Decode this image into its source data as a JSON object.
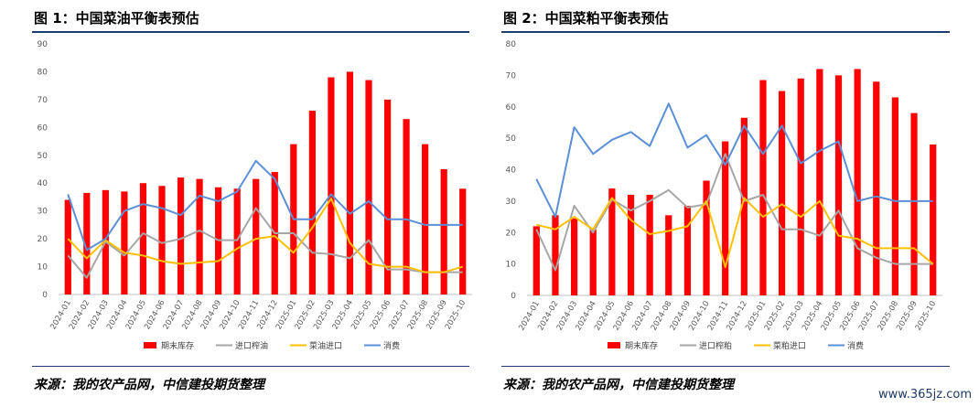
{
  "figures": [
    {
      "title": "图 1：中国菜油平衡表预估",
      "source": "来源：我的农产品网，中信建投期货整理"
    },
    {
      "title": "图 2：中国菜粕平衡表预估",
      "source": "来源：我的农产品网，中信建投期货整理"
    }
  ],
  "watermark": "www.365jz.com",
  "colors": {
    "stock": "#ff0000",
    "import_product": "#a6a6a6",
    "import_seed": "#ffc000",
    "consumption": "#5b8fd6",
    "rule": "#1f3b6e"
  },
  "chart_data": [
    {
      "type": "bar",
      "title": "图 1：中国菜油平衡表预估",
      "categories": [
        "2024-01",
        "2024-02",
        "2024-03",
        "2024-04",
        "2024-05",
        "2024-06",
        "2024-07",
        "2024-08",
        "2024-09",
        "2024-10",
        "2024-11",
        "2024-12",
        "2025-01",
        "2025-02",
        "2025-03",
        "2025-04",
        "2025-05",
        "2025-06",
        "2025-07",
        "2025-08",
        "2025-09",
        "2025-10"
      ],
      "ylim": [
        0,
        90
      ],
      "yticks": [
        0,
        10,
        20,
        30,
        40,
        50,
        60,
        70,
        80,
        90
      ],
      "legend_position": "bottom",
      "series": [
        {
          "name": "期末库存",
          "kind": "bar",
          "values": [
            34,
            36.5,
            37.5,
            37,
            40,
            39,
            42,
            41.5,
            38.5,
            38,
            41.5,
            44,
            54,
            66,
            78,
            80,
            77,
            70,
            63,
            54,
            45,
            38
          ]
        },
        {
          "name": "进口榨油",
          "kind": "line",
          "values": [
            14,
            6,
            19,
            14,
            22,
            18.5,
            20,
            23,
            19.5,
            19.5,
            31,
            22,
            22,
            15,
            14.5,
            13,
            19.5,
            9,
            9,
            8,
            8,
            8
          ]
        },
        {
          "name": "菜油进口",
          "kind": "line",
          "values": [
            20,
            13,
            19.5,
            15,
            14,
            12,
            11,
            11.5,
            12,
            16.5,
            20,
            21,
            15,
            24,
            34.5,
            18.5,
            11,
            10,
            10,
            8,
            8,
            10
          ]
        },
        {
          "name": "消费",
          "kind": "line",
          "values": [
            36,
            16,
            20,
            30,
            32.5,
            31,
            28.5,
            35.5,
            33.5,
            37,
            48,
            41.5,
            27,
            27,
            36,
            29,
            33.5,
            27,
            27,
            25,
            25,
            25
          ]
        }
      ]
    },
    {
      "type": "bar",
      "title": "图 2：中国菜粕平衡表预估",
      "categories": [
        "2024-01",
        "2024-02",
        "2024-03",
        "2024-04",
        "2024-05",
        "2024-06",
        "2024-07",
        "2024-08",
        "2024-09",
        "2024-10",
        "2024-11",
        "2024-12",
        "2025-01",
        "2025-02",
        "2025-03",
        "2025-04",
        "2025-05",
        "2025-06",
        "2025-07",
        "2025-08",
        "2025-09",
        "2025-10"
      ],
      "ylim": [
        0,
        80
      ],
      "yticks": [
        0,
        10,
        20,
        30,
        40,
        50,
        60,
        70,
        80
      ],
      "legend_position": "bottom",
      "series": [
        {
          "name": "期末库存",
          "kind": "bar",
          "values": [
            22,
            25.5,
            24.5,
            21,
            34,
            32,
            32,
            25.5,
            28.5,
            36.5,
            49,
            56.5,
            68.5,
            65,
            69,
            72,
            70,
            72,
            68,
            63,
            58,
            48
          ]
        },
        {
          "name": "进口榨粕",
          "kind": "line",
          "values": [
            21,
            8,
            28.5,
            20,
            30.5,
            27,
            30,
            33.5,
            28,
            29,
            45,
            30,
            32,
            21,
            21,
            19,
            27,
            15,
            12,
            10,
            10,
            10
          ]
        },
        {
          "name": "菜粕进口",
          "kind": "line",
          "values": [
            22.5,
            21,
            25,
            21,
            31,
            24,
            19.5,
            20.5,
            22,
            30,
            9,
            31,
            25,
            29,
            25,
            30,
            19,
            18,
            15,
            15,
            15,
            10
          ]
        },
        {
          "name": "消费",
          "kind": "line",
          "values": [
            37,
            25,
            53.5,
            45,
            49.5,
            52,
            47.5,
            61,
            47,
            51,
            41.5,
            54,
            45,
            54,
            42,
            46,
            49,
            30,
            31.5,
            30,
            30,
            30
          ]
        }
      ]
    }
  ]
}
